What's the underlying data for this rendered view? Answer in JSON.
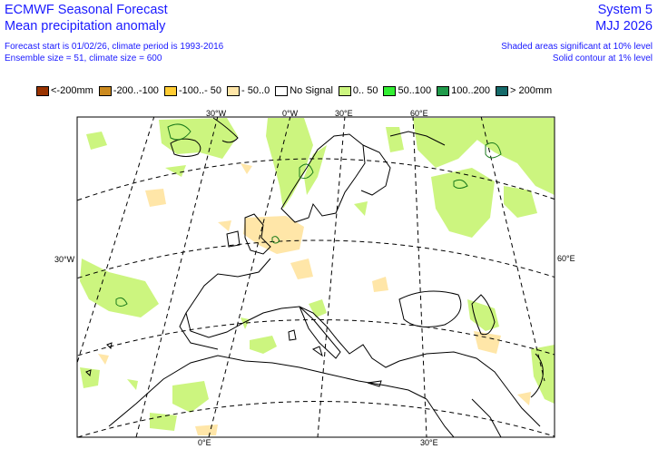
{
  "header": {
    "title": "ECMWF Seasonal Forecast",
    "subtitle": "Mean precipitation anomaly",
    "line3": "Forecast start is 01/02/26, climate period is 1993-2016",
    "line4": "Ensemble size = 51, climate size = 600",
    "system": "System 5",
    "season": "MJJ 2026",
    "sig1": "Shaded areas significant at 10% level",
    "sig2": "Solid contour at 1% level"
  },
  "legend": [
    {
      "label": "<-200mm",
      "color": "#993300"
    },
    {
      "label": "-200..-100",
      "color": "#cc8a1f"
    },
    {
      "label": "-100..- 50",
      "color": "#ffcc33"
    },
    {
      "label": "- 50..0",
      "color": "#ffe6a8"
    },
    {
      "label": "No Signal",
      "color": "#ffffff"
    },
    {
      "label": "0.. 50",
      "color": "#ccf57f"
    },
    {
      "label": "50..100",
      "color": "#33ee33"
    },
    {
      "label": "100..200",
      "color": "#1f9a4a"
    },
    {
      "label": "> 200mm",
      "color": "#156a6a"
    }
  ],
  "map": {
    "grid_labels": {
      "top_30w": "30°W",
      "top_0": "0°W",
      "top_30e": "30°E",
      "top_60e": "60°E",
      "left_30w": "30°W",
      "right_60e": "60°E",
      "bottom_0": "0°E",
      "bottom_30e": "30°E"
    },
    "colors": {
      "land": "#ffffff",
      "coast": "#000000",
      "positive_anomaly": "#ccf57f",
      "negative_anomaly": "#ffe6a8",
      "significance_contour": "#1a7a1a"
    }
  }
}
